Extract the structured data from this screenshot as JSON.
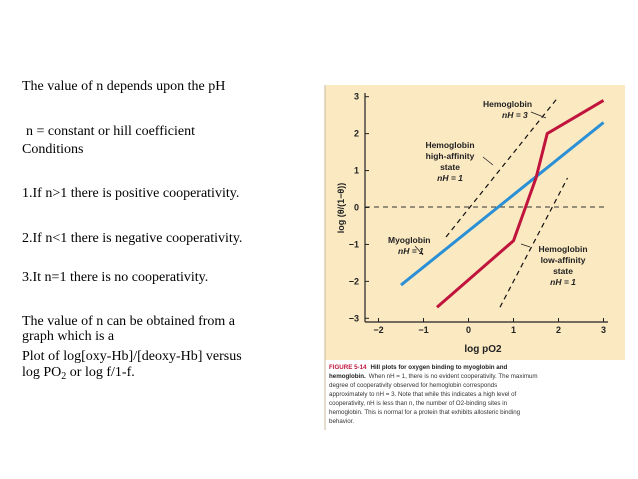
{
  "text": {
    "line1": "The value of n depends upon the pH",
    "line2": "n = constant or hill coefficient",
    "line3": "Conditions",
    "line4": "1.If n>1 there is positive cooperativity.",
    "line5": "2.If n<1 there is negative cooperativity.",
    "line6": "3.It n=1 there is no cooperativity.",
    "line7": "The value of n can be obtained from a",
    "line8": "graph which is a",
    "line9": "Plot of log[oxy-Hb]/[deoxy-Hb] versus",
    "line10_a": "log PO",
    "line10_sub": "2",
    "line10_b": " or log f/1-f."
  },
  "figure": {
    "caption_label": "FIGURE 5-14",
    "caption_title": "Hill plots for oxygen binding to myoglobin and hemoglobin.",
    "caption_body": "When nH = 1, there is no evident cooperativity. The maximum degree of cooperativity observed for hemoglobin corresponds approximately to nH = 3. Note that while this indicates a high level of cooperativity, nH is less than n, the number of O2-binding sites in hemoglobin. This is normal for a protein that exhibits allosteric binding behavior.",
    "caption_lines": [
      "degree of cooperativity observed for hemoglobin corresponds",
      "approximately to nH = 3. Note that while this indicates a high level of",
      "cooperativity, nH is less than n, the number of O2-binding sites in",
      "hemoglobin. This is normal for a protein that exhibits allosteric binding",
      "behavior."
    ],
    "caption_line1": "Hill plots for oxygen binding to myoglobin and",
    "caption_line2a": "hemoglobin.",
    "caption_line2b": "When nH = 1, there is no evident cooperativity. The maximum",
    "panel_color": "#fbe9c2",
    "xlabel": "log pO2",
    "ylabel": "log (θ/(1−θ))",
    "annotations": {
      "hb": [
        "Hemoglobin",
        "nH = 3"
      ],
      "hb_high": [
        "Hemoglobin",
        "high-affinity",
        "state",
        "nH = 1"
      ],
      "mb": [
        "Myoglobin",
        "nH = 1"
      ],
      "hb_low": [
        "Hemoglobin",
        "low-affinity",
        "state",
        "nH = 1"
      ]
    }
  },
  "chart_data": {
    "type": "line",
    "xlabel": "log pO2",
    "ylabel": "log (θ/(1−θ))",
    "xlim": [
      -2.3,
      3.1
    ],
    "ylim": [
      -3.1,
      3.1
    ],
    "xticks": [
      "−2",
      "−1",
      "0",
      "1",
      "2",
      "3"
    ],
    "yticks": [
      "3",
      "2",
      "1",
      "0",
      "−1",
      "−2",
      "−3"
    ],
    "series": [
      {
        "name": "Myoglobin",
        "color": "#2a8fd4",
        "style": "solid",
        "x": [
          -1.5,
          3.0
        ],
        "y": [
          -2.1,
          2.3
        ]
      },
      {
        "name": "Hemoglobin",
        "color": "#c0143c",
        "style": "solid",
        "x": [
          -0.7,
          1.0,
          1.5,
          1.75,
          3.0
        ],
        "y": [
          -2.7,
          -0.9,
          0.8,
          2.0,
          2.9
        ]
      },
      {
        "name": "Hemoglobin high-affinity state",
        "color": "#111111",
        "style": "dashed",
        "x": [
          -0.5,
          2.0
        ],
        "y": [
          -0.8,
          3.0
        ]
      },
      {
        "name": "Hemoglobin low-affinity state",
        "color": "#111111",
        "style": "dashed",
        "x": [
          0.7,
          2.2
        ],
        "y": [
          -2.7,
          0.8
        ]
      }
    ]
  }
}
